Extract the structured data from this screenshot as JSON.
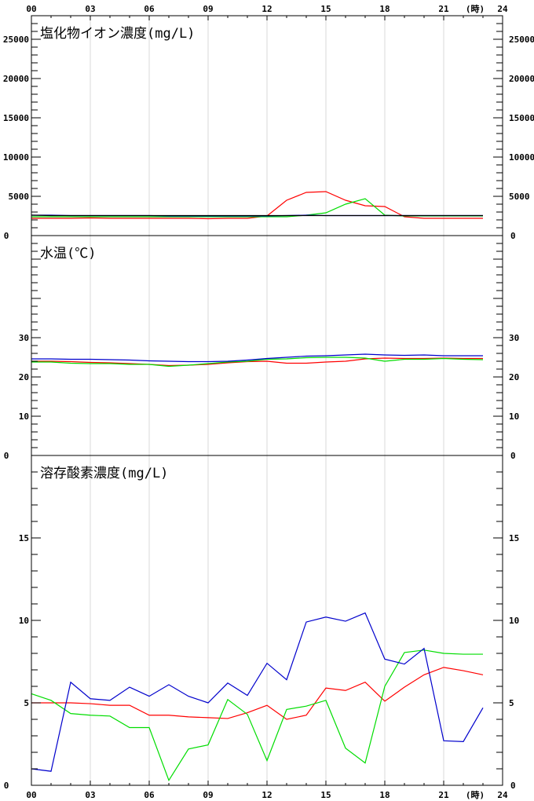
{
  "chart_data": [
    {
      "type": "line",
      "title": "塩化物イオン濃度(mg/L)",
      "ylim": [
        0,
        28000
      ],
      "y_ticks": [
        0,
        5000,
        10000,
        15000,
        20000,
        25000
      ],
      "x": [
        0,
        1,
        2,
        3,
        4,
        5,
        6,
        7,
        8,
        9,
        10,
        11,
        12,
        13,
        14,
        15,
        16,
        17,
        18,
        19,
        20,
        21,
        22,
        23
      ],
      "series": [
        {
          "color": "#ff0000",
          "values": [
            2200,
            2200,
            2200,
            2250,
            2200,
            2200,
            2200,
            2200,
            2200,
            2150,
            2200,
            2200,
            2500,
            4500,
            5500,
            5600,
            4500,
            3800,
            3700,
            2400,
            2200,
            2200,
            2200,
            2200
          ]
        },
        {
          "color": "#00dd00",
          "values": [
            2400,
            2400,
            2400,
            2400,
            2400,
            2400,
            2400,
            2400,
            2400,
            2400,
            2400,
            2400,
            2400,
            2400,
            2600,
            2900,
            4000,
            4700,
            2600,
            2500,
            2500,
            2500,
            2500,
            2500
          ]
        },
        {
          "color": "#0000cc",
          "values": [
            2600,
            2600,
            2550,
            2550,
            2550,
            2550,
            2550,
            2500,
            2500,
            2500,
            2500,
            2500,
            2500,
            2550,
            2600,
            2550,
            2550,
            2550,
            2550,
            2550,
            2550,
            2550,
            2550,
            2550
          ]
        },
        {
          "color": "#000000",
          "values": [
            2600,
            2550,
            2550,
            2550,
            2550,
            2550,
            2550,
            2550,
            2550,
            2550,
            2550,
            2550,
            2550,
            2550,
            2550,
            2550,
            2550,
            2550,
            2550,
            2550,
            2550,
            2550,
            2550,
            2550
          ]
        }
      ]
    },
    {
      "type": "line",
      "title": "水温(℃)",
      "ylim": [
        0,
        56
      ],
      "y_ticks": [
        0,
        10,
        20,
        30
      ],
      "x": [
        0,
        1,
        2,
        3,
        4,
        5,
        6,
        7,
        8,
        9,
        10,
        11,
        12,
        13,
        14,
        15,
        16,
        17,
        18,
        19,
        20,
        21,
        22,
        23
      ],
      "series": [
        {
          "color": "#ff0000",
          "values": [
            24.0,
            24.0,
            23.9,
            23.7,
            23.6,
            23.4,
            23.2,
            22.9,
            23.0,
            23.2,
            23.6,
            23.9,
            24.0,
            23.5,
            23.5,
            23.8,
            24.0,
            24.6,
            24.8,
            24.7,
            24.7,
            24.8,
            24.7,
            24.7
          ]
        },
        {
          "color": "#00dd00",
          "values": [
            23.8,
            23.8,
            23.5,
            23.4,
            23.4,
            23.2,
            23.2,
            22.7,
            23.0,
            23.4,
            23.8,
            24.0,
            24.5,
            24.6,
            24.9,
            25.0,
            25.0,
            24.8,
            24.0,
            24.5,
            24.5,
            24.7,
            24.5,
            24.4
          ]
        },
        {
          "color": "#0000cc",
          "values": [
            24.6,
            24.6,
            24.5,
            24.5,
            24.4,
            24.3,
            24.1,
            24.0,
            23.9,
            23.9,
            24.0,
            24.3,
            24.7,
            25.0,
            25.3,
            25.4,
            25.6,
            25.8,
            25.6,
            25.5,
            25.6,
            25.4,
            25.4,
            25.4
          ]
        }
      ]
    },
    {
      "type": "line",
      "title": "溶存酸素濃度(mg/L)",
      "ylim": [
        0,
        20
      ],
      "y_ticks": [
        0,
        5,
        10,
        15
      ],
      "x": [
        0,
        1,
        2,
        3,
        4,
        5,
        6,
        7,
        8,
        9,
        10,
        11,
        12,
        13,
        14,
        15,
        16,
        17,
        18,
        19,
        20,
        21,
        22,
        23
      ],
      "series": [
        {
          "color": "#ff0000",
          "values": [
            5.0,
            5.0,
            5.0,
            4.95,
            4.85,
            4.85,
            4.25,
            4.25,
            4.15,
            4.1,
            4.05,
            4.4,
            4.85,
            4.0,
            4.25,
            5.9,
            5.75,
            6.25,
            5.1,
            5.95,
            6.7,
            7.15,
            6.95,
            6.7
          ]
        },
        {
          "color": "#00dd00",
          "values": [
            5.55,
            5.15,
            4.35,
            4.25,
            4.2,
            3.5,
            3.5,
            0.3,
            2.2,
            2.45,
            5.2,
            4.3,
            1.5,
            4.6,
            4.8,
            5.15,
            2.25,
            1.35,
            6.0,
            8.05,
            8.2,
            8.0,
            7.95,
            7.95
          ]
        },
        {
          "color": "#0000cc",
          "values": [
            1.0,
            0.85,
            6.25,
            5.25,
            5.15,
            5.95,
            5.4,
            6.1,
            5.4,
            5.0,
            6.2,
            5.45,
            7.4,
            6.4,
            9.9,
            10.2,
            9.95,
            10.45,
            7.65,
            7.35,
            8.3,
            2.7,
            2.65,
            4.7
          ]
        }
      ]
    }
  ],
  "x_axis": {
    "tick_labels": [
      "00",
      "03",
      "06",
      "09",
      "12",
      "15",
      "18",
      "21",
      "24"
    ],
    "unit_label": "(時)"
  }
}
